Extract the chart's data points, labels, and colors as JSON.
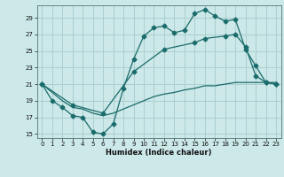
{
  "title": "",
  "xlabel": "Humidex (Indice chaleur)",
  "ylabel": "",
  "bg_color": "#cce8e8",
  "grid_color": "#aacfcf",
  "line_color": "#1a6b6b",
  "xlim": [
    -0.5,
    23.5
  ],
  "ylim": [
    14.5,
    30.5
  ],
  "xticks": [
    0,
    1,
    2,
    3,
    4,
    5,
    6,
    7,
    8,
    9,
    10,
    11,
    12,
    13,
    14,
    15,
    16,
    17,
    18,
    19,
    20,
    21,
    22,
    23
  ],
  "yticks": [
    15,
    17,
    19,
    21,
    23,
    25,
    27,
    29
  ],
  "line1_x": [
    0,
    1,
    2,
    3,
    4,
    5,
    6,
    7,
    8,
    9,
    10,
    11,
    12,
    13,
    14,
    15,
    16,
    17,
    18,
    19,
    20,
    21,
    22,
    23
  ],
  "line1_y": [
    21,
    19,
    18.2,
    17.2,
    17.0,
    15.2,
    15.0,
    16.2,
    20.5,
    24.0,
    26.8,
    27.8,
    28.0,
    27.2,
    27.5,
    29.5,
    30.0,
    29.2,
    28.6,
    28.8,
    25.2,
    23.2,
    21.2,
    21.0
  ],
  "line2_x": [
    0,
    3,
    6,
    9,
    12,
    15,
    16,
    18,
    19,
    20,
    21,
    22,
    23
  ],
  "line2_y": [
    21,
    18.5,
    17.5,
    22.5,
    25.2,
    26.0,
    26.5,
    26.8,
    27.0,
    25.5,
    22.0,
    21.2,
    21.0
  ],
  "line3_x": [
    0,
    1,
    2,
    3,
    4,
    5,
    6,
    7,
    8,
    9,
    10,
    11,
    12,
    13,
    14,
    15,
    16,
    17,
    18,
    19,
    20,
    21,
    22,
    23
  ],
  "line3_y": [
    21.0,
    20.0,
    19.0,
    18.2,
    18.0,
    17.5,
    17.2,
    17.5,
    18.0,
    18.5,
    19.0,
    19.5,
    19.8,
    20.0,
    20.3,
    20.5,
    20.8,
    20.8,
    21.0,
    21.2,
    21.2,
    21.2,
    21.2,
    21.2
  ]
}
